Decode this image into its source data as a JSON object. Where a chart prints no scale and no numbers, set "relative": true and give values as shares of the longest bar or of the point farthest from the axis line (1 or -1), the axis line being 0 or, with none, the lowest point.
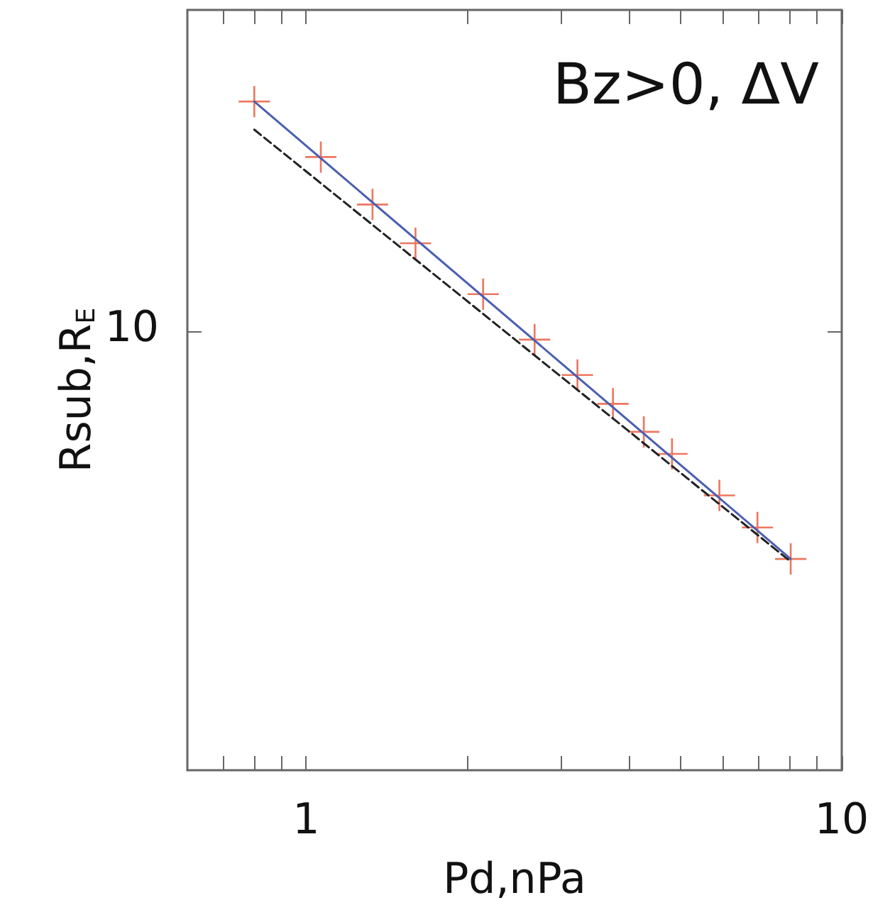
{
  "chart_data": {
    "type": "scatter",
    "relative": true,
    "annotations": [
      "Bz>0, ΔV",
      "10"
    ],
    "xlabel": "Pd,nPa",
    "ylabel": "Rsub,R$_{E}$",
    "log": "x",
    "grid": false,
    "xlim": [
      0.6,
      10
    ],
    "xticks": [
      {
        "value": 0.7,
        "label": null
      },
      {
        "value": 0.8,
        "label": null
      },
      {
        "value": 0.9,
        "label": null
      },
      1,
      {
        "value": 2,
        "label": null
      },
      {
        "value": 3,
        "label": null
      },
      {
        "value": 4,
        "label": null
      },
      {
        "value": 5,
        "label": null
      },
      {
        "value": 6,
        "label": null
      },
      {
        "value": 7,
        "label": null
      },
      {
        "value": 8,
        "label": null
      },
      {
        "value": 9,
        "label": null
      },
      10
    ],
    "series": [
      {
        "marker": "cross",
        "color": "#e8553a",
        "x": [
          0.8,
          1.065,
          1.33,
          1.6,
          2.14,
          2.67,
          3.21,
          3.74,
          4.27,
          4.82,
          5.91,
          6.96,
          8.03
        ],
        "values": [
          1,
          0.917,
          0.846,
          0.788,
          0.712,
          0.644,
          0.591,
          0.548,
          0.506,
          0.473,
          0.411,
          0.363,
          0.316
        ]
      },
      {
        "type": "line",
        "marker": "none",
        "line_style": "solid",
        "color": "#4a5fb0",
        "x": [
          0.8,
          8.03
        ],
        "values": [
          1,
          0.316
        ]
      },
      {
        "type": "line",
        "marker": "none",
        "line_style": "dashed",
        "color": "#222222",
        "x": [
          0.8,
          8.03
        ],
        "values": [
          0.958,
          0.312
        ]
      }
    ]
  }
}
